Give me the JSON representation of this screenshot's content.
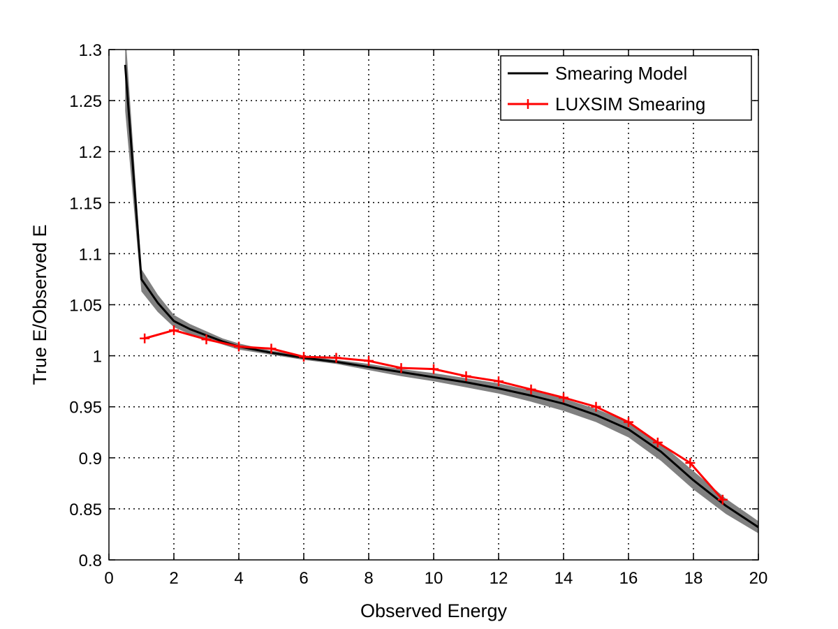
{
  "chart_data": {
    "type": "line",
    "title": "",
    "xlabel": "Observed Energy",
    "ylabel": "True E/Observed E",
    "xlim": [
      0,
      20
    ],
    "ylim": [
      0.8,
      1.3
    ],
    "xticks": [
      0,
      2,
      4,
      6,
      8,
      10,
      12,
      14,
      16,
      18,
      20
    ],
    "xtick_labels": [
      "0",
      "2",
      "4",
      "6",
      "8",
      "10",
      "12",
      "14",
      "16",
      "18",
      "20"
    ],
    "yticks": [
      0.8,
      0.85,
      0.9,
      0.95,
      1.0,
      1.05,
      1.1,
      1.15,
      1.2,
      1.25,
      1.3
    ],
    "ytick_labels": [
      "0.8",
      "0.85",
      "0.9",
      "0.95",
      "1",
      "1.05",
      "1.1",
      "1.15",
      "1.2",
      "1.25",
      "1.3"
    ],
    "grid": true,
    "legend_position": "top-right",
    "series": [
      {
        "name": "Smearing Model",
        "color": "#000000",
        "marker": "none",
        "x": [
          0.5,
          1,
          1.5,
          2,
          2.5,
          3,
          3.5,
          4,
          5,
          6,
          7,
          8,
          9,
          10,
          11,
          12,
          13,
          14,
          15,
          16,
          17,
          18,
          19,
          20
        ],
        "y": [
          1.285,
          1.075,
          1.052,
          1.034,
          1.026,
          1.02,
          1.014,
          1.009,
          1.003,
          0.998,
          0.994,
          0.989,
          0.984,
          0.979,
          0.974,
          0.968,
          0.961,
          0.953,
          0.942,
          0.928,
          0.906,
          0.878,
          0.853,
          0.832
        ],
        "band": {
          "color": "#808080",
          "upper": [
            1.32,
            1.085,
            1.06,
            1.04,
            1.031,
            1.024,
            1.017,
            1.012,
            1.005,
            1.0,
            0.996,
            0.992,
            0.987,
            0.983,
            0.978,
            0.973,
            0.966,
            0.958,
            0.948,
            0.935,
            0.914,
            0.887,
            0.86,
            0.838
          ],
          "lower": [
            1.24,
            1.063,
            1.043,
            1.028,
            1.021,
            1.016,
            1.011,
            1.006,
            1.001,
            0.996,
            0.992,
            0.986,
            0.98,
            0.975,
            0.969,
            0.963,
            0.955,
            0.946,
            0.935,
            0.92,
            0.897,
            0.869,
            0.845,
            0.826
          ]
        }
      },
      {
        "name": "LUXSIM Smearing",
        "color": "#ff0000",
        "marker": "+",
        "x": [
          1.1,
          2,
          3,
          4,
          5,
          6,
          7,
          8,
          9,
          10,
          11,
          12,
          13,
          14,
          15,
          16,
          16.9,
          17.9,
          18.9
        ],
        "y": [
          1.017,
          1.025,
          1.016,
          1.009,
          1.007,
          0.999,
          0.998,
          0.995,
          0.988,
          0.987,
          0.98,
          0.975,
          0.967,
          0.959,
          0.95,
          0.935,
          0.915,
          0.895,
          0.859
        ]
      }
    ]
  }
}
